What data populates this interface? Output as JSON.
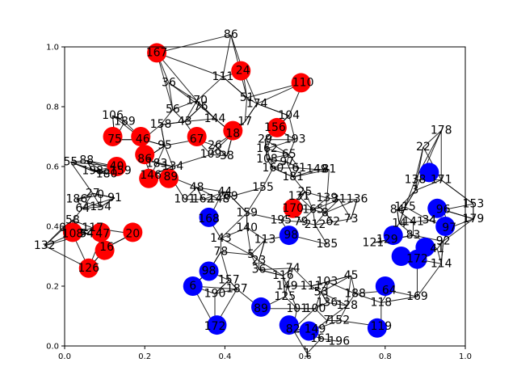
{
  "chart_data": {
    "type": "scatter",
    "title": "",
    "xlabel": "",
    "ylabel": "",
    "xlim": [
      0,
      1
    ],
    "ylim": [
      0,
      1
    ],
    "x_ticks": [
      "0.0",
      "0.2",
      "0.4",
      "0.6",
      "0.8",
      "1.0"
    ],
    "y_ticks": [
      "0.0",
      "0.2",
      "0.4",
      "0.6",
      "0.8",
      "1.0"
    ],
    "grid": false,
    "colors": {
      "group_a": "#ff0000",
      "group_b": "#0000ff",
      "edge": "#000000"
    },
    "nodes": [
      {
        "id": "167",
        "x": 0.23,
        "y": 0.98,
        "group": "red"
      },
      {
        "id": "24",
        "x": 0.44,
        "y": 0.92,
        "group": "red"
      },
      {
        "id": "110",
        "x": 0.59,
        "y": 0.88,
        "group": "red"
      },
      {
        "id": "75",
        "x": 0.12,
        "y": 0.7,
        "group": "red"
      },
      {
        "id": "46",
        "x": 0.19,
        "y": 0.7,
        "group": "red"
      },
      {
        "id": "67",
        "x": 0.33,
        "y": 0.7,
        "group": "red"
      },
      {
        "id": "56",
        "x": 0.53,
        "y": 0.73,
        "group": "red"
      },
      {
        "id": "18",
        "x": 0.42,
        "y": 0.72,
        "group": "red"
      },
      {
        "id": "80",
        "x": 0.2,
        "y": 0.64,
        "group": "red"
      },
      {
        "id": "46b",
        "x": 0.21,
        "y": 0.56,
        "group": "red"
      },
      {
        "id": "89",
        "x": 0.26,
        "y": 0.56,
        "group": "red"
      },
      {
        "id": "40",
        "x": 0.13,
        "y": 0.6,
        "group": "red"
      },
      {
        "id": "170",
        "x": 0.57,
        "y": 0.46,
        "group": "red"
      },
      {
        "id": "108",
        "x": 0.02,
        "y": 0.38,
        "group": "red"
      },
      {
        "id": "47",
        "x": 0.09,
        "y": 0.38,
        "group": "red"
      },
      {
        "id": "20",
        "x": 0.17,
        "y": 0.38,
        "group": "red"
      },
      {
        "id": "16",
        "x": 0.1,
        "y": 0.32,
        "group": "red"
      },
      {
        "id": "126",
        "x": 0.06,
        "y": 0.26,
        "group": "red"
      },
      {
        "id": "168",
        "x": 0.36,
        "y": 0.43,
        "group": "blue"
      },
      {
        "id": "98",
        "x": 0.56,
        "y": 0.37,
        "group": "blue"
      },
      {
        "id": "6",
        "x": 0.32,
        "y": 0.2,
        "group": "blue"
      },
      {
        "id": "98b",
        "x": 0.36,
        "y": 0.25,
        "group": "blue"
      },
      {
        "id": "89b",
        "x": 0.49,
        "y": 0.13,
        "group": "blue"
      },
      {
        "id": "172",
        "x": 0.38,
        "y": 0.07,
        "group": "blue"
      },
      {
        "id": "82",
        "x": 0.56,
        "y": 0.07,
        "group": "blue"
      },
      {
        "id": "149",
        "x": 0.61,
        "y": 0.05,
        "group": "blue"
      },
      {
        "id": "119",
        "x": 0.78,
        "y": 0.06,
        "group": "blue"
      },
      {
        "id": "129",
        "x": 0.82,
        "y": 0.37,
        "group": "blue"
      },
      {
        "id": "122",
        "x": 0.84,
        "y": 0.3,
        "group": "blue"
      },
      {
        "id": "142",
        "x": 0.8,
        "y": 0.2,
        "group": "blue"
      },
      {
        "id": "172b",
        "x": 0.88,
        "y": 0.29,
        "group": "blue"
      },
      {
        "id": "41",
        "x": 0.9,
        "y": 0.33,
        "group": "blue"
      },
      {
        "id": "138",
        "x": 0.91,
        "y": 0.58,
        "group": "blue"
      },
      {
        "id": "96",
        "x": 0.93,
        "y": 0.46,
        "group": "blue"
      },
      {
        "id": "97",
        "x": 0.95,
        "y": 0.4,
        "group": "blue"
      }
    ],
    "labels": [
      {
        "text": "86",
        "x": 0.415,
        "y": 1.04
      },
      {
        "text": "167",
        "x": 0.23,
        "y": 0.98
      },
      {
        "text": "24",
        "x": 0.445,
        "y": 0.92
      },
      {
        "text": "110",
        "x": 0.595,
        "y": 0.88
      },
      {
        "text": "36",
        "x": 0.26,
        "y": 0.88
      },
      {
        "text": "111",
        "x": 0.395,
        "y": 0.9
      },
      {
        "text": "51",
        "x": 0.455,
        "y": 0.83
      },
      {
        "text": "170",
        "x": 0.33,
        "y": 0.82
      },
      {
        "text": "174",
        "x": 0.48,
        "y": 0.81
      },
      {
        "text": "76",
        "x": 0.34,
        "y": 0.8
      },
      {
        "text": "56",
        "x": 0.27,
        "y": 0.79
      },
      {
        "text": "104",
        "x": 0.56,
        "y": 0.77
      },
      {
        "text": "106",
        "x": 0.12,
        "y": 0.77
      },
      {
        "text": "43",
        "x": 0.3,
        "y": 0.75
      },
      {
        "text": "144",
        "x": 0.375,
        "y": 0.76
      },
      {
        "text": "156",
        "x": 0.525,
        "y": 0.73
      },
      {
        "text": "189",
        "x": 0.15,
        "y": 0.75
      },
      {
        "text": "158",
        "x": 0.24,
        "y": 0.74
      },
      {
        "text": "17",
        "x": 0.45,
        "y": 0.75
      },
      {
        "text": "193",
        "x": 0.575,
        "y": 0.69
      },
      {
        "text": "75",
        "x": 0.125,
        "y": 0.69
      },
      {
        "text": "46",
        "x": 0.195,
        "y": 0.69
      },
      {
        "text": "67",
        "x": 0.33,
        "y": 0.69
      },
      {
        "text": "18",
        "x": 0.42,
        "y": 0.71
      },
      {
        "text": "95",
        "x": 0.25,
        "y": 0.67
      },
      {
        "text": "26",
        "x": 0.375,
        "y": 0.67
      },
      {
        "text": "29",
        "x": 0.5,
        "y": 0.69
      },
      {
        "text": "162",
        "x": 0.505,
        "y": 0.66
      },
      {
        "text": "109",
        "x": 0.365,
        "y": 0.64
      },
      {
        "text": "38",
        "x": 0.405,
        "y": 0.635
      },
      {
        "text": "65",
        "x": 0.56,
        "y": 0.64
      },
      {
        "text": "88",
        "x": 0.055,
        "y": 0.62
      },
      {
        "text": "55",
        "x": 0.015,
        "y": 0.615
      },
      {
        "text": "86",
        "x": 0.2,
        "y": 0.625
      },
      {
        "text": "183",
        "x": 0.23,
        "y": 0.61
      },
      {
        "text": "108",
        "x": 0.505,
        "y": 0.625
      },
      {
        "text": "97",
        "x": 0.555,
        "y": 0.615
      },
      {
        "text": "160",
        "x": 0.52,
        "y": 0.595
      },
      {
        "text": "61",
        "x": 0.585,
        "y": 0.595
      },
      {
        "text": "149",
        "x": 0.63,
        "y": 0.59
      },
      {
        "text": "81",
        "x": 0.66,
        "y": 0.59
      },
      {
        "text": "134",
        "x": 0.27,
        "y": 0.6
      },
      {
        "text": "40",
        "x": 0.13,
        "y": 0.6
      },
      {
        "text": "198",
        "x": 0.07,
        "y": 0.585
      },
      {
        "text": "159",
        "x": 0.14,
        "y": 0.585
      },
      {
        "text": "146",
        "x": 0.215,
        "y": 0.57
      },
      {
        "text": "89",
        "x": 0.265,
        "y": 0.565
      },
      {
        "text": "180",
        "x": 0.105,
        "y": 0.575
      },
      {
        "text": "181",
        "x": 0.57,
        "y": 0.565
      },
      {
        "text": "48",
        "x": 0.33,
        "y": 0.53
      },
      {
        "text": "155",
        "x": 0.495,
        "y": 0.53
      },
      {
        "text": "44",
        "x": 0.4,
        "y": 0.515
      },
      {
        "text": "25",
        "x": 0.6,
        "y": 0.515
      },
      {
        "text": "27",
        "x": 0.07,
        "y": 0.51
      },
      {
        "text": "0",
        "x": 0.09,
        "y": 0.505
      },
      {
        "text": "91",
        "x": 0.125,
        "y": 0.495
      },
      {
        "text": "101",
        "x": 0.3,
        "y": 0.49
      },
      {
        "text": "162",
        "x": 0.345,
        "y": 0.49
      },
      {
        "text": "148",
        "x": 0.385,
        "y": 0.49
      },
      {
        "text": "69",
        "x": 0.415,
        "y": 0.5
      },
      {
        "text": "131",
        "x": 0.585,
        "y": 0.5
      },
      {
        "text": "139",
        "x": 0.655,
        "y": 0.495
      },
      {
        "text": "31",
        "x": 0.685,
        "y": 0.49
      },
      {
        "text": "136",
        "x": 0.73,
        "y": 0.49
      },
      {
        "text": "186",
        "x": 0.03,
        "y": 0.49
      },
      {
        "text": "64",
        "x": 0.045,
        "y": 0.46
      },
      {
        "text": "154",
        "x": 0.09,
        "y": 0.465
      },
      {
        "text": "170",
        "x": 0.57,
        "y": 0.46
      },
      {
        "text": "165",
        "x": 0.62,
        "y": 0.455
      },
      {
        "text": "8",
        "x": 0.65,
        "y": 0.445
      },
      {
        "text": "159",
        "x": 0.455,
        "y": 0.445
      },
      {
        "text": "58",
        "x": 0.02,
        "y": 0.42
      },
      {
        "text": "168",
        "x": 0.36,
        "y": 0.425
      },
      {
        "text": "195",
        "x": 0.54,
        "y": 0.42
      },
      {
        "text": "79",
        "x": 0.59,
        "y": 0.415
      },
      {
        "text": "62",
        "x": 0.67,
        "y": 0.415
      },
      {
        "text": "73",
        "x": 0.715,
        "y": 0.425
      },
      {
        "text": "212",
        "x": 0.625,
        "y": 0.405
      },
      {
        "text": "140",
        "x": 0.455,
        "y": 0.395
      },
      {
        "text": "117",
        "x": 0.07,
        "y": 0.395
      },
      {
        "text": "0",
        "x": -0.005,
        "y": 0.395
      },
      {
        "text": "108",
        "x": 0.02,
        "y": 0.375
      },
      {
        "text": "54",
        "x": 0.055,
        "y": 0.375
      },
      {
        "text": "47",
        "x": 0.095,
        "y": 0.375
      },
      {
        "text": "20",
        "x": 0.17,
        "y": 0.375
      },
      {
        "text": "84",
        "x": 0.83,
        "y": 0.455
      },
      {
        "text": "14",
        "x": 0.835,
        "y": 0.41
      },
      {
        "text": "141",
        "x": 0.87,
        "y": 0.415
      },
      {
        "text": "115",
        "x": 0.85,
        "y": 0.465
      },
      {
        "text": "96",
        "x": 0.945,
        "y": 0.455
      },
      {
        "text": "34",
        "x": 0.91,
        "y": 0.42
      },
      {
        "text": "97",
        "x": 0.96,
        "y": 0.395
      },
      {
        "text": "153",
        "x": 1.02,
        "y": 0.475
      },
      {
        "text": "179",
        "x": 1.02,
        "y": 0.425
      },
      {
        "text": "143",
        "x": 0.39,
        "y": 0.36
      },
      {
        "text": "113",
        "x": 0.5,
        "y": 0.355
      },
      {
        "text": "98",
        "x": 0.565,
        "y": 0.37
      },
      {
        "text": "185",
        "x": 0.655,
        "y": 0.34
      },
      {
        "text": "121",
        "x": 0.77,
        "y": 0.345
      },
      {
        "text": "129",
        "x": 0.805,
        "y": 0.355
      },
      {
        "text": "83",
        "x": 0.87,
        "y": 0.37
      },
      {
        "text": "92",
        "x": 0.945,
        "y": 0.35
      },
      {
        "text": "41",
        "x": 0.93,
        "y": 0.325
      },
      {
        "text": "16",
        "x": 0.105,
        "y": 0.33
      },
      {
        "text": "132",
        "x": -0.05,
        "y": 0.335
      },
      {
        "text": "78",
        "x": 0.39,
        "y": 0.315
      },
      {
        "text": "5",
        "x": 0.465,
        "y": 0.305
      },
      {
        "text": "23",
        "x": 0.485,
        "y": 0.285
      },
      {
        "text": "114",
        "x": 0.94,
        "y": 0.275
      },
      {
        "text": "172",
        "x": 0.88,
        "y": 0.29
      },
      {
        "text": "98",
        "x": 0.36,
        "y": 0.25
      },
      {
        "text": "74",
        "x": 0.57,
        "y": 0.26
      },
      {
        "text": "126",
        "x": 0.06,
        "y": 0.26
      },
      {
        "text": "36",
        "x": 0.485,
        "y": 0.255
      },
      {
        "text": "116",
        "x": 0.545,
        "y": 0.235
      },
      {
        "text": "45",
        "x": 0.715,
        "y": 0.235
      },
      {
        "text": "103",
        "x": 0.655,
        "y": 0.215
      },
      {
        "text": "149",
        "x": 0.555,
        "y": 0.2
      },
      {
        "text": "111",
        "x": 0.615,
        "y": 0.2
      },
      {
        "text": "157",
        "x": 0.41,
        "y": 0.22
      },
      {
        "text": "6",
        "x": 0.32,
        "y": 0.2
      },
      {
        "text": "187",
        "x": 0.43,
        "y": 0.19
      },
      {
        "text": "53",
        "x": 0.64,
        "y": 0.18
      },
      {
        "text": "188",
        "x": 0.725,
        "y": 0.175
      },
      {
        "text": "190",
        "x": 0.375,
        "y": 0.175
      },
      {
        "text": "125",
        "x": 0.55,
        "y": 0.165
      },
      {
        "text": "169",
        "x": 0.88,
        "y": 0.165
      },
      {
        "text": "64",
        "x": 0.81,
        "y": 0.185
      },
      {
        "text": "136",
        "x": 0.655,
        "y": 0.145
      },
      {
        "text": "128",
        "x": 0.705,
        "y": 0.135
      },
      {
        "text": "89",
        "x": 0.49,
        "y": 0.125
      },
      {
        "text": "101",
        "x": 0.58,
        "y": 0.125
      },
      {
        "text": "100",
        "x": 0.625,
        "y": 0.125
      },
      {
        "text": "118",
        "x": 0.79,
        "y": 0.145
      },
      {
        "text": "152",
        "x": 0.685,
        "y": 0.085
      },
      {
        "text": "7",
        "x": 0.655,
        "y": 0.085
      },
      {
        "text": "119",
        "x": 0.79,
        "y": 0.065
      },
      {
        "text": "172",
        "x": 0.375,
        "y": 0.065
      },
      {
        "text": "82",
        "x": 0.57,
        "y": 0.055
      },
      {
        "text": "149",
        "x": 0.625,
        "y": 0.055
      },
      {
        "text": "161",
        "x": 0.64,
        "y": 0.025
      },
      {
        "text": "196",
        "x": 0.685,
        "y": 0.015
      },
      {
        "text": "1",
        "x": 0.605,
        "y": -0.025
      },
      {
        "text": "178",
        "x": 0.94,
        "y": 0.72
      },
      {
        "text": "22",
        "x": 0.895,
        "y": 0.665
      },
      {
        "text": "138",
        "x": 0.875,
        "y": 0.555
      },
      {
        "text": "171",
        "x": 0.94,
        "y": 0.555
      },
      {
        "text": "3",
        "x": 0.875,
        "y": 0.52
      }
    ]
  }
}
